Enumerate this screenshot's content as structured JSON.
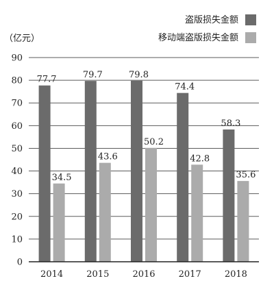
{
  "chart_data": {
    "type": "bar",
    "ylabel": "（亿元）",
    "categories": [
      "2014",
      "2015",
      "2016",
      "2017",
      "2018"
    ],
    "ylim": [
      0,
      90
    ],
    "yticks": [
      0,
      10,
      20,
      30,
      40,
      50,
      60,
      70,
      80,
      90
    ],
    "grid": true,
    "legend_position": "top-right",
    "series": [
      {
        "name": "盗版损失金额",
        "color": "#6b6b6b",
        "values": [
          77.7,
          79.7,
          79.8,
          74.4,
          58.3
        ]
      },
      {
        "name": "移动端盗版损失金额",
        "color": "#ababab",
        "values": [
          34.5,
          43.6,
          50.2,
          42.8,
          35.6
        ]
      }
    ]
  }
}
